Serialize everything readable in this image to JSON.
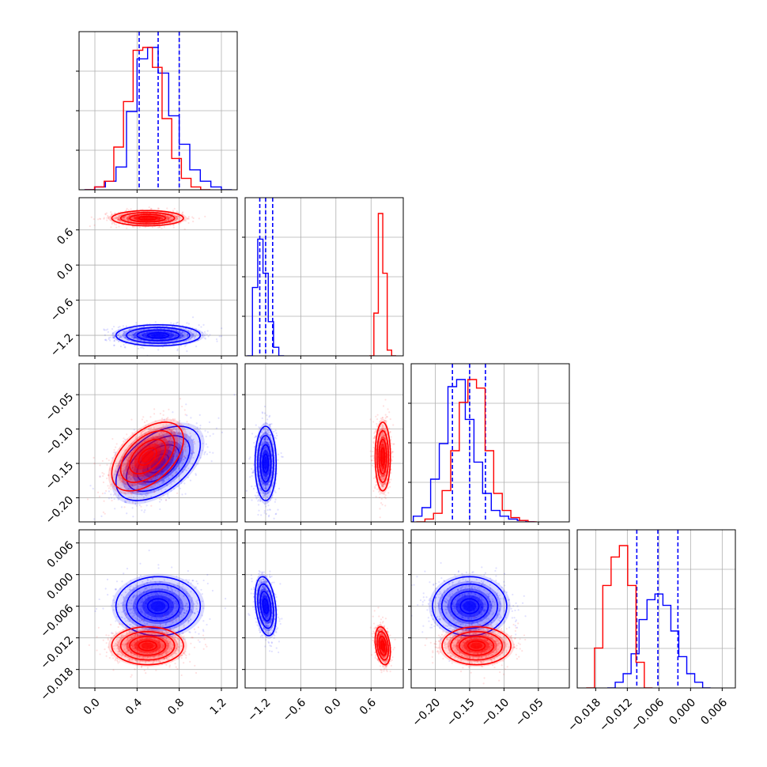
{
  "chart_data": {
    "type": "corner",
    "title": "",
    "parameters": [
      {
        "range": [
          -0.15,
          1.35
        ],
        "ticks": [
          "0.0",
          "0.4",
          "0.8",
          "1.2"
        ],
        "tick_values": [
          0.0,
          0.4,
          0.8,
          1.2
        ]
      },
      {
        "range": [
          -1.55,
          1.15
        ],
        "ticks": [
          "-1.2",
          "-0.6",
          "0.0",
          "0.6"
        ],
        "tick_values": [
          -1.2,
          -0.6,
          0.0,
          0.6
        ]
      },
      {
        "range": [
          -0.235,
          -0.005
        ],
        "ticks": [
          "-0.20",
          "-0.15",
          "-0.10",
          "-0.05"
        ],
        "tick_values": [
          -0.2,
          -0.15,
          -0.1,
          -0.05
        ]
      },
      {
        "range": [
          -0.0215,
          0.0085
        ],
        "ticks": [
          "-0.018",
          "-0.012",
          "-0.006",
          "0.000",
          "0.006"
        ],
        "tick_values": [
          -0.018,
          -0.012,
          -0.006,
          0.0,
          0.006
        ]
      }
    ],
    "grid": true,
    "colors": {
      "series_a": "#0000ff",
      "series_b": "#ff0000",
      "quantile_lines": "#0000ff"
    },
    "series": [
      {
        "color": "#0000ff",
        "means": [
          0.6,
          -1.2,
          -0.15,
          -0.006
        ],
        "sds": [
          0.2,
          0.09,
          0.027,
          0.0028
        ],
        "quantiles": [
          [
            0.42,
            0.6,
            0.8
          ],
          [
            -1.3,
            -1.2,
            -1.08
          ],
          [
            -0.175,
            -0.15,
            -0.127
          ],
          [
            -0.0102,
            -0.0062,
            -0.0024
          ]
        ],
        "hist": [
          [
            0.0,
            0.02,
            0.06,
            0.16,
            0.55,
            0.92,
            1.0,
            0.82,
            0.52,
            0.32,
            0.14,
            0.06,
            0.02,
            0.0
          ],
          [
            0.0,
            0.48,
            0.82,
            0.58,
            0.24,
            0.06,
            0.0
          ],
          [
            0.0,
            0.04,
            0.1,
            0.3,
            0.55,
            0.95,
            1.0,
            0.72,
            0.42,
            0.2,
            0.08,
            0.04,
            0.02,
            0.01,
            0.0
          ],
          [
            0.0,
            0.04,
            0.1,
            0.24,
            0.48,
            0.62,
            0.66,
            0.58,
            0.4,
            0.22,
            0.1,
            0.04,
            0.0
          ]
        ]
      },
      {
        "color": "#ff0000",
        "means": [
          0.5,
          0.8,
          -0.14,
          -0.0135
        ],
        "sds": [
          0.17,
          0.065,
          0.025,
          0.0018
        ],
        "quantiles": [],
        "hist": [
          [
            0.0,
            0.02,
            0.06,
            0.3,
            0.62,
            0.98,
            1.0,
            0.86,
            0.5,
            0.22,
            0.08,
            0.02,
            0.0
          ],
          [
            0.0,
            0.3,
            1.0,
            0.58,
            0.04,
            0.0
          ],
          [
            0.0,
            0.02,
            0.06,
            0.22,
            0.5,
            0.84,
            1.0,
            0.94,
            0.5,
            0.2,
            0.08,
            0.03,
            0.01,
            0.0
          ],
          [
            0.0,
            0.28,
            0.72,
            0.92,
            1.0,
            0.72,
            0.18,
            0.0
          ]
        ]
      }
    ],
    "correlations": {
      "0-2": 0.5,
      "0-3": 0.0,
      "1-2": 0.0,
      "1-3": -0.3,
      "2-3": 0.0,
      "0-1": 0.0
    }
  }
}
